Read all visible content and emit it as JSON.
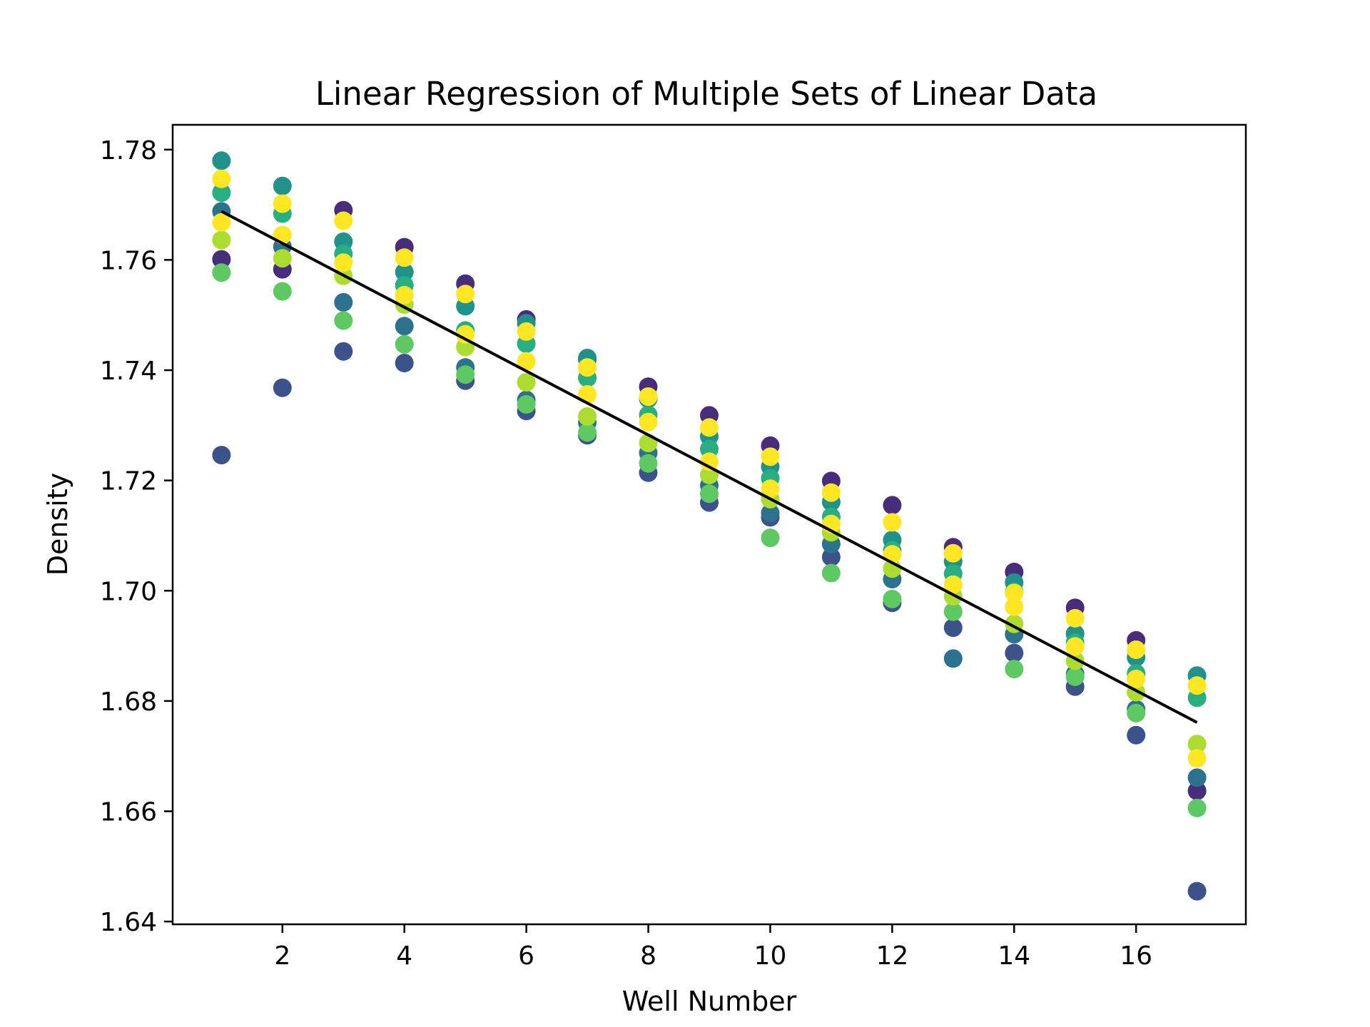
{
  "chart_data": {
    "type": "scatter",
    "title": "Linear Regression of Multiple Sets of Linear Data",
    "xlabel": "Well Number",
    "ylabel": "Density",
    "xlim": [
      0.2,
      17.8
    ],
    "ylim": [
      1.6395,
      1.7845
    ],
    "xticks": [
      2,
      4,
      6,
      8,
      10,
      12,
      14,
      16
    ],
    "xtick_labels": [
      "2",
      "4",
      "6",
      "8",
      "10",
      "12",
      "14",
      "16"
    ],
    "yticks": [
      1.64,
      1.66,
      1.68,
      1.7,
      1.72,
      1.74,
      1.76,
      1.78
    ],
    "ytick_labels": [
      "1.64",
      "1.66",
      "1.68",
      "1.70",
      "1.72",
      "1.74",
      "1.76",
      "1.78"
    ],
    "grid": false,
    "legend": "none",
    "colormap": [
      "#440154",
      "#472d7b",
      "#3b528b",
      "#2c728e",
      "#21918c",
      "#28ae80",
      "#5ec962",
      "#addc30",
      "#fde725"
    ],
    "x": [
      1,
      2,
      3,
      4,
      5,
      6,
      7,
      8,
      9,
      10,
      11,
      12,
      13,
      14,
      15,
      16,
      17
    ],
    "series": [
      {
        "color": "#3b528b",
        "values": [
          1.7246,
          1.7368,
          1.7434,
          1.7413,
          1.7381,
          1.7326,
          1.7282,
          1.7214,
          1.716,
          1.7133,
          1.7061,
          1.6978,
          1.6933,
          1.6887,
          1.6826,
          1.6738,
          1.6455
        ]
      },
      {
        "color": "#472d7b",
        "values": [
          1.7601,
          1.7583,
          1.769,
          1.7623,
          1.7557,
          1.7492,
          1.742,
          1.737,
          1.7318,
          1.7263,
          1.7199,
          1.7155,
          1.7079,
          1.7034,
          1.6969,
          1.691,
          1.6637
        ]
      },
      {
        "color": "#2c728e",
        "values": [
          1.7688,
          1.7624,
          1.7523,
          1.748,
          1.7405,
          1.7346,
          1.7305,
          1.725,
          1.7191,
          1.7141,
          1.7085,
          1.7021,
          1.6877,
          1.6921,
          1.6849,
          1.6785,
          1.6661
        ]
      },
      {
        "color": "#21918c",
        "values": [
          1.778,
          1.7734,
          1.7633,
          1.7578,
          1.7516,
          1.7485,
          1.7422,
          1.7348,
          1.728,
          1.7225,
          1.7161,
          1.7092,
          1.7053,
          1.7015,
          1.6922,
          1.6879,
          1.6846
        ]
      },
      {
        "color": "#28ae80",
        "values": [
          1.7722,
          1.7684,
          1.7611,
          1.7554,
          1.7472,
          1.7448,
          1.7386,
          1.7319,
          1.7257,
          1.7204,
          1.7134,
          1.7073,
          1.7031,
          1.6998,
          1.6906,
          1.685,
          1.6806
        ]
      },
      {
        "color": "#5ec962",
        "values": [
          1.7577,
          1.7543,
          1.749,
          1.7447,
          1.7392,
          1.7338,
          1.7287,
          1.7231,
          1.7176,
          1.7096,
          1.7032,
          1.6985,
          1.6962,
          1.6858,
          1.6844,
          1.6778,
          1.6606
        ]
      },
      {
        "color": "#addc30",
        "values": [
          1.7636,
          1.7603,
          1.7571,
          1.7519,
          1.7442,
          1.7378,
          1.7316,
          1.7268,
          1.721,
          1.7166,
          1.7106,
          1.704,
          1.699,
          1.694,
          1.6873,
          1.6816,
          1.6722
        ]
      },
      {
        "color": "#fde725",
        "values": [
          1.7747,
          1.7702,
          1.7671,
          1.7604,
          1.7538,
          1.747,
          1.7405,
          1.7352,
          1.7296,
          1.7243,
          1.7178,
          1.7124,
          1.7068,
          1.6996,
          1.695,
          1.6893,
          1.6828
        ]
      },
      {
        "color": "#fde725",
        "values": [
          1.7668,
          1.7645,
          1.7595,
          1.7536,
          1.7465,
          1.7416,
          1.7356,
          1.7306,
          1.7234,
          1.7185,
          1.7121,
          1.7066,
          1.7011,
          1.6971,
          1.6899,
          1.684,
          1.6696
        ]
      }
    ],
    "regression_line": {
      "color": "#000000",
      "x": [
        1,
        17
      ],
      "y": [
        1.7688,
        1.6761
      ]
    }
  }
}
